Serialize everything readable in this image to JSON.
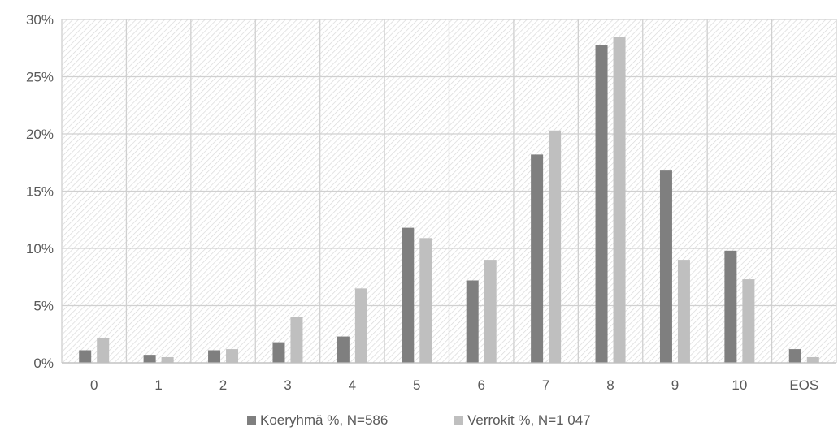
{
  "chart_data": {
    "type": "bar",
    "categories": [
      "0",
      "1",
      "2",
      "3",
      "4",
      "5",
      "6",
      "7",
      "8",
      "9",
      "10",
      "EOS"
    ],
    "series": [
      {
        "name": "Koeryhmä %, N=586",
        "color": "#7f7f7f",
        "values": [
          1.1,
          0.7,
          1.1,
          1.8,
          2.3,
          11.8,
          7.2,
          18.2,
          27.8,
          16.8,
          9.8,
          1.2
        ]
      },
      {
        "name": "Verrokit %, N=1 047",
        "color": "#bfbfbf",
        "values": [
          2.2,
          0.5,
          1.2,
          4.0,
          6.5,
          10.9,
          9.0,
          20.3,
          28.5,
          9.0,
          7.3,
          0.5
        ]
      }
    ],
    "yaxis": {
      "min": 0,
      "max": 30,
      "ticks": [
        0,
        5,
        10,
        15,
        20,
        25,
        30
      ],
      "tick_labels": [
        "0%",
        "5%",
        "10%",
        "15%",
        "20%",
        "25%",
        "30%"
      ]
    },
    "title": "",
    "xlabel": "",
    "ylabel": "",
    "grid": true,
    "background_pattern": "diagonal-hatch",
    "legend_position": "bottom"
  }
}
